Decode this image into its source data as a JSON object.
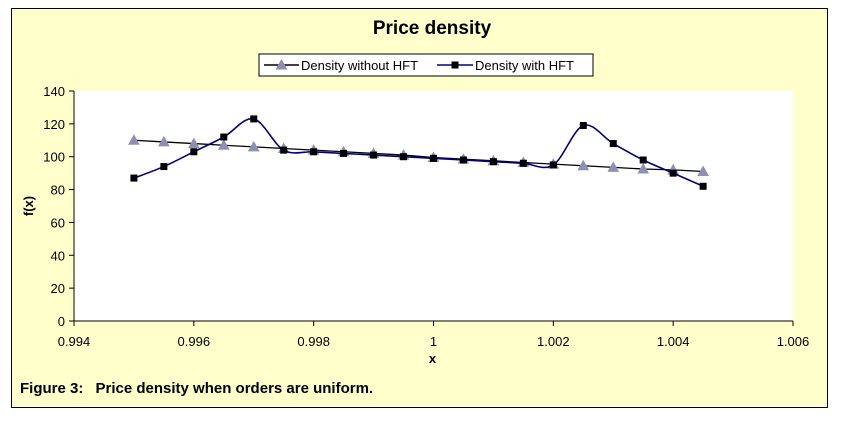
{
  "chart_data": {
    "type": "line",
    "title": "Price density",
    "xlabel": "x",
    "ylabel": "f(x)",
    "xlim": [
      0.994,
      1.006
    ],
    "ylim": [
      0,
      140
    ],
    "x_ticks": [
      "0.994",
      "0.996",
      "0.998",
      "1",
      "1.002",
      "1.004",
      "1.006"
    ],
    "y_ticks": [
      "0",
      "20",
      "40",
      "60",
      "80",
      "100",
      "120",
      "140"
    ],
    "grid": false,
    "legend_position": "top",
    "series": [
      {
        "name": "Density without HFT",
        "marker": "triangle",
        "color": "#000000",
        "marker_color": "#8f8fb3",
        "x": [
          0.995,
          0.9955,
          0.996,
          0.9965,
          0.997,
          0.9975,
          0.998,
          0.9985,
          0.999,
          0.9995,
          1.0,
          1.0005,
          1.001,
          1.0015,
          1.002,
          1.0025,
          1.003,
          1.0035,
          1.004,
          1.0045
        ],
        "y": [
          110,
          109,
          108,
          107,
          106,
          105,
          104,
          103,
          102,
          101,
          99.5,
          98.5,
          97.5,
          96.5,
          95.5,
          94.5,
          93.5,
          92.5,
          92,
          91
        ]
      },
      {
        "name": "Density with HFT",
        "marker": "square",
        "color": "#000080",
        "marker_color": "#000000",
        "x": [
          0.995,
          0.9955,
          0.996,
          0.9965,
          0.997,
          0.9975,
          0.998,
          0.9985,
          0.999,
          0.9995,
          1.0,
          1.0005,
          1.001,
          1.0015,
          1.002,
          1.0025,
          1.003,
          1.0035,
          1.004,
          1.0045
        ],
        "y": [
          87,
          94,
          103,
          112,
          123,
          104,
          103,
          102,
          101,
          100,
          99,
          98,
          97,
          96,
          95,
          119,
          108,
          98,
          90,
          82
        ]
      }
    ]
  },
  "caption": {
    "label": "Figure 3:",
    "text": "Price density when orders are uniform."
  }
}
